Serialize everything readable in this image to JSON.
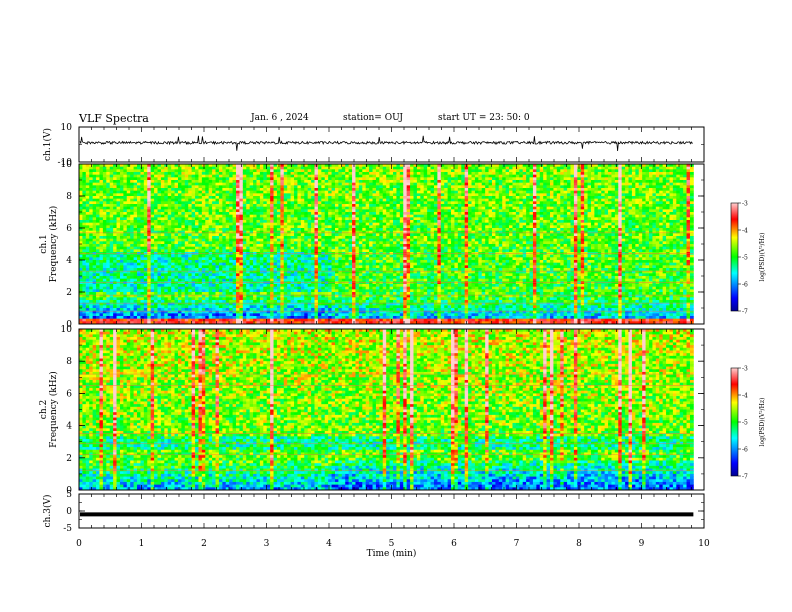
{
  "header": {
    "title": "VLF Spectra",
    "date": "Jan. 6 , 2024",
    "station": "station= OUJ",
    "start": "start UT = 23: 50: 0"
  },
  "chart_data": [
    {
      "type": "line",
      "panel": "ch1 waveform",
      "ylabel": "ch.1(V)",
      "ylim": [
        -10,
        10
      ],
      "yticks": [
        "10",
        "-10"
      ],
      "description_values": {
        "baseline": 1,
        "noise_amplitude": 1.5,
        "spike_max": 4
      }
    },
    {
      "type": "heatmap",
      "panel": "ch1 spectrogram",
      "ylabel": "ch.1\nFrequency (kHz)",
      "ylabel_lines": [
        "ch.1",
        "Frequency (kHz)"
      ],
      "ylim": [
        0,
        10
      ],
      "yticks": [
        "0",
        "2",
        "4",
        "6",
        "8",
        "10"
      ],
      "colorbar": {
        "label": "log(PSD)(V²/Hz)",
        "range": [
          -7,
          -3
        ],
        "ticks": [
          "-3",
          "-4",
          "-5",
          "-6",
          "-7"
        ]
      }
    },
    {
      "type": "heatmap",
      "panel": "ch2 spectrogram",
      "ylabel": "ch.2\nFrequency (kHz)",
      "ylabel_lines": [
        "ch.2",
        "Frequency (kHz)"
      ],
      "ylim": [
        0,
        10
      ],
      "yticks": [
        "0",
        "2",
        "4",
        "6",
        "8",
        "10"
      ],
      "colorbar": {
        "label": "log(PSD)(V²/Hz)",
        "range": [
          -7,
          -3
        ],
        "ticks": [
          "-3",
          "-4",
          "-5",
          "-6",
          "-7"
        ]
      }
    },
    {
      "type": "line",
      "panel": "ch3 waveform",
      "ylabel": "ch.3(V)",
      "ylim": [
        -5,
        5
      ],
      "yticks": [
        "5",
        "0",
        "-5"
      ],
      "description_values": {
        "level": -1
      }
    }
  ],
  "xaxis": {
    "label": "Time (min)",
    "range": [
      0,
      10
    ],
    "data_end": 9.83,
    "ticks": [
      "0",
      "1",
      "2",
      "3",
      "4",
      "5",
      "6",
      "7",
      "8",
      "9",
      "10"
    ]
  },
  "colors": {
    "ink": "#000000",
    "colormap": [
      "#000090",
      "#0000ff",
      "#00ffff",
      "#00ff00",
      "#ffff00",
      "#ff0000",
      "#ffc0c0"
    ]
  }
}
